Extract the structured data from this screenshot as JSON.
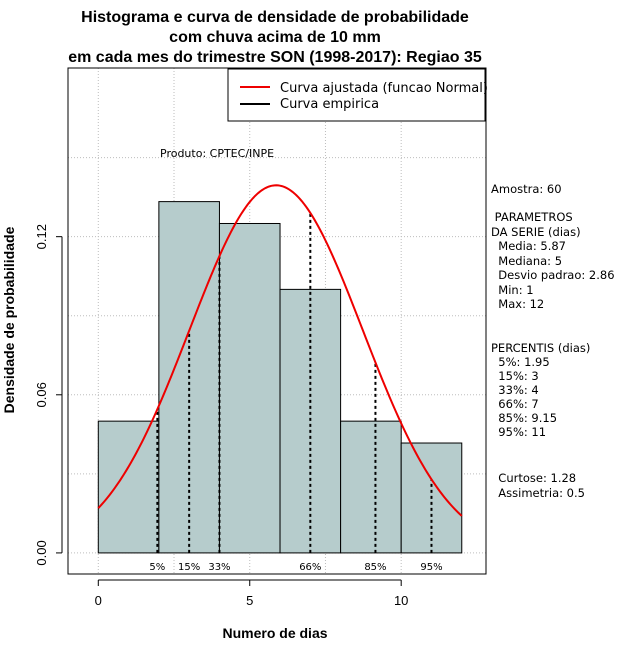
{
  "chart_data": {
    "type": "bar",
    "title": [
      "Histograma e curva de densidade de probabilidade",
      "com chuva acima de 10 mm",
      "em cada mes do trimestre SON (1998-2017): Regiao 35"
    ],
    "xlabel": "Numero de dias",
    "ylabel": "Densidade de probabilidade",
    "xlim": [
      -1,
      12.8
    ],
    "ylim": [
      -0.008,
      0.184
    ],
    "x_ticks": [
      0,
      5,
      10
    ],
    "y_ticks": [
      0.0,
      0.06,
      0.12
    ],
    "y_tick_labels": [
      "0.00",
      "0.06",
      "0.12"
    ],
    "grid": true,
    "bars": [
      {
        "x0": 0,
        "x1": 2,
        "value": 0.05
      },
      {
        "x0": 2,
        "x1": 4,
        "value": 0.1333
      },
      {
        "x0": 4,
        "x1": 6,
        "value": 0.125
      },
      {
        "x0": 6,
        "x1": 8,
        "value": 0.1
      },
      {
        "x0": 8,
        "x1": 10,
        "value": 0.05
      },
      {
        "x0": 10,
        "x1": 12,
        "value": 0.0417
      }
    ],
    "bar_color": "#b6cccc",
    "normal_curve": {
      "mean": 5.87,
      "sd": 2.86,
      "x_range": [
        0,
        12
      ],
      "color": "#ee0000"
    },
    "percentile_lines": [
      {
        "label": "5%",
        "x": 1.95
      },
      {
        "label": "15%",
        "x": 3
      },
      {
        "label": "33%",
        "x": 4
      },
      {
        "label": "66%",
        "x": 7
      },
      {
        "label": "85%",
        "x": 9.15
      },
      {
        "label": "95%",
        "x": 11
      }
    ],
    "legend": {
      "position": "top-right",
      "entries": [
        {
          "label": "Curva ajustada (funcao Normal)",
          "color": "#ee0000"
        },
        {
          "label": "Curva empirica",
          "color": "#000000"
        }
      ]
    },
    "annotation": "Produto: CPTEC/INPE",
    "stats_lines": [
      "Amostra: 60",
      " PARAMETROS",
      "DA SERIE (dias)",
      "  Media: 5.87",
      "  Mediana: 5",
      "  Desvio padrao: 2.86",
      "  Min: 1",
      "  Max: 12",
      "PERCENTIS (dias)",
      "  5%: 1.95",
      "  15%: 3",
      "  33%: 4",
      "  66%: 7",
      "  85%: 9.15",
      "  95%: 11",
      "  Curtose: 1.28",
      "  Assimetria: 0.5"
    ]
  }
}
